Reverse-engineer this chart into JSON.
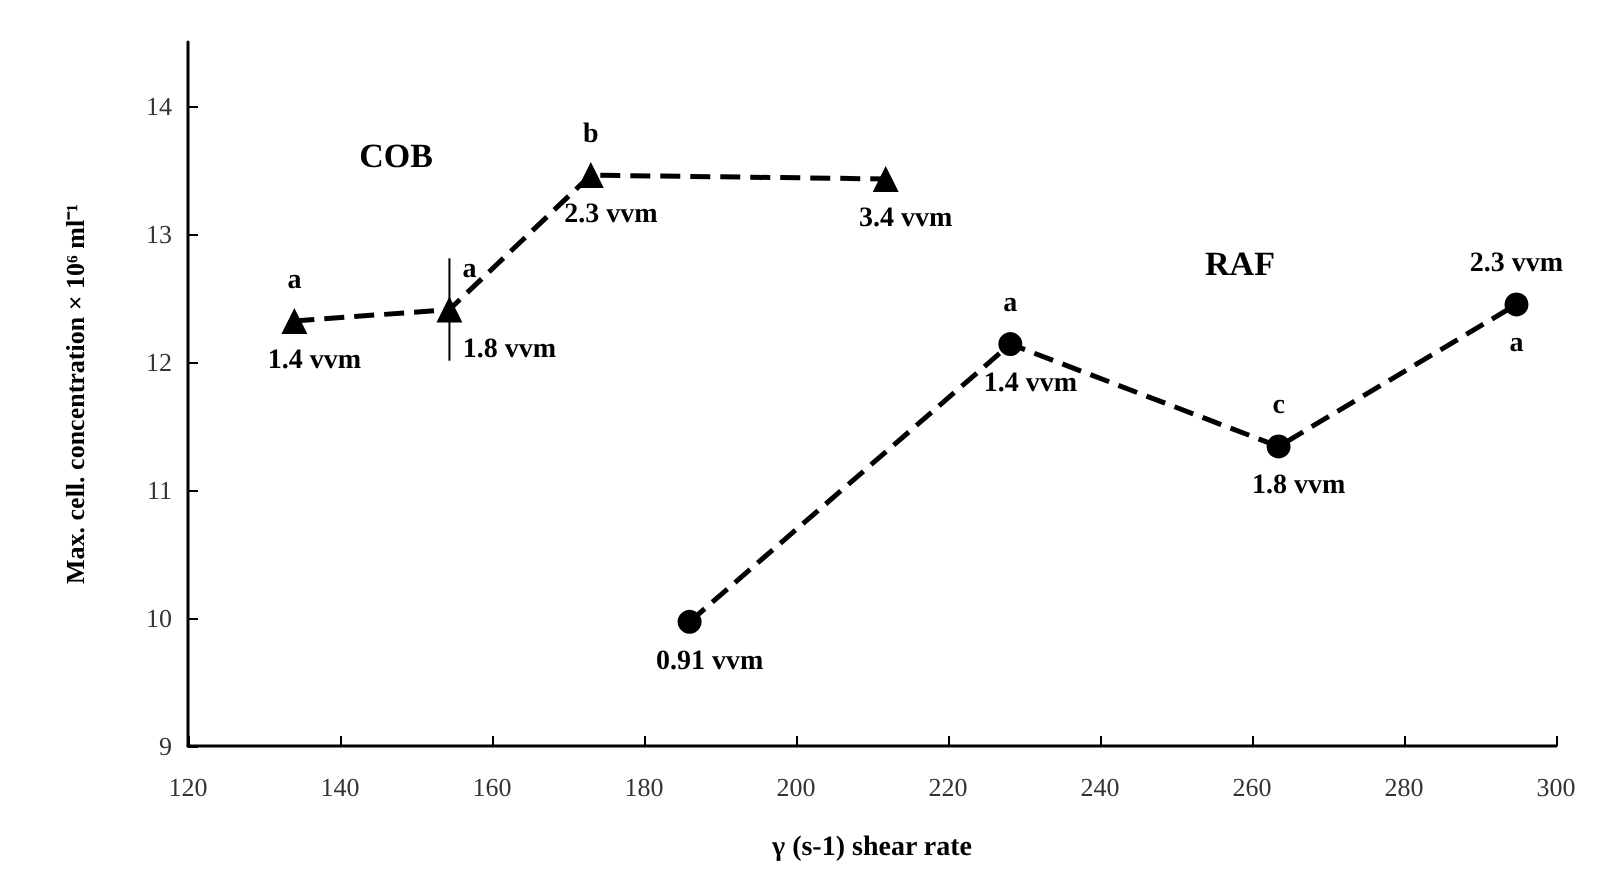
{
  "chart_data": {
    "type": "line",
    "xlabel": "γ (s-1) shear rate",
    "ylabel": "Max. cell. concentration × 10⁶ ml⁻¹",
    "xlim": [
      120,
      300
    ],
    "xticks": [
      120,
      140,
      160,
      180,
      200,
      220,
      240,
      260,
      280,
      300
    ],
    "ylim": [
      9,
      14.5
    ],
    "yticks": [
      9,
      10,
      11,
      12,
      13,
      14
    ],
    "grid": false,
    "line_style": "dashed",
    "series": [
      {
        "x": [
          134,
          154.4,
          173,
          211.8
        ],
        "values": [
          12.32,
          12.41,
          13.46,
          13.43
        ],
        "errors": [
          null,
          0.4,
          null,
          null
        ],
        "color": "#000000",
        "marker": "triangle"
      },
      {
        "x": [
          186,
          228.2,
          263.5,
          294.8
        ],
        "values": [
          9.97,
          12.14,
          11.34,
          12.45
        ],
        "color": "#000000",
        "marker": "circle"
      }
    ],
    "annotations": [
      "COB",
      "RAF",
      {
        "text": "a",
        "x": 134,
        "y": 12.32
      },
      {
        "text": "1.4 vvm",
        "x": 134,
        "y": 12.32
      },
      {
        "text": "a",
        "x": 154.4,
        "y": 12.41
      },
      {
        "text": "1.8 vvm",
        "x": 154.4,
        "y": 12.41
      },
      {
        "text": "b",
        "x": 173,
        "y": 13.46
      },
      {
        "text": "2.3 vvm",
        "x": 173,
        "y": 13.46
      },
      {
        "text": "3.4 vvm",
        "x": 211.8,
        "y": 13.43
      },
      {
        "text": "0.91 vvm",
        "x": 186,
        "y": 9.97
      },
      {
        "text": "a",
        "x": 228.2,
        "y": 12.14
      },
      {
        "text": "1.4 vvm",
        "x": 228.2,
        "y": 12.14
      },
      {
        "text": "c",
        "x": 263.5,
        "y": 11.34
      },
      {
        "text": "1.8 vvm",
        "x": 263.5,
        "y": 11.34
      },
      {
        "text": "2.3 vvm",
        "x": 294.8,
        "y": 12.45
      },
      {
        "text": "a",
        "x": 294.8,
        "y": 12.45
      }
    ]
  }
}
